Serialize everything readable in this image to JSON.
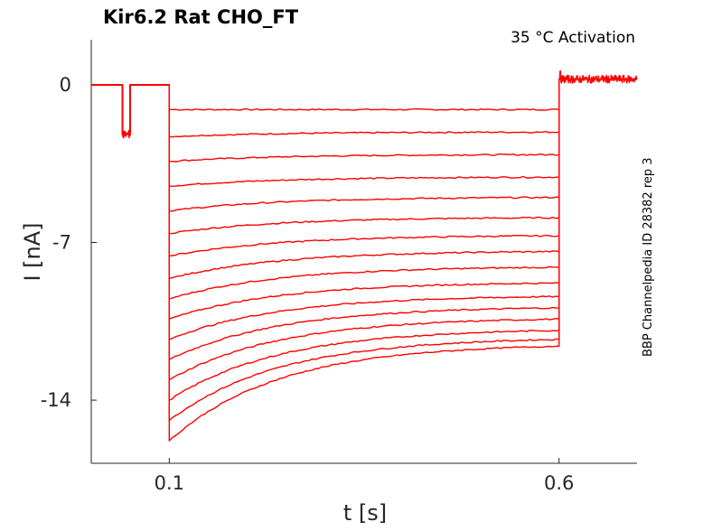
{
  "chart_data": {
    "type": "line",
    "title": "Kir6.2  Rat  CHO_FT",
    "annotation": "35 °C  Activation",
    "side_note": "BBP Channelpedia ID 28382 rep 3",
    "xlabel": "t [s]",
    "ylabel": "I [nA]",
    "xlim": [
      0.0,
      0.7
    ],
    "ylim": [
      -16.8,
      2.0
    ],
    "x_ticks": [
      0.1,
      0.6
    ],
    "x_tick_labels": [
      "0.1",
      "0.6"
    ],
    "y_ticks": [
      0,
      -7,
      -14
    ],
    "y_tick_labels": [
      "0",
      "-7",
      "-14"
    ],
    "grid": false,
    "legend": "none",
    "trace_color": "#ff0000",
    "protocol": {
      "baseline_current": 0,
      "prepulse": {
        "start": 0.04,
        "end": 0.05,
        "current": -2.2
      },
      "step_start": 0.1,
      "step_end": 0.6,
      "tail_current": 0.25,
      "tail_end": 0.7
    },
    "series": [
      {
        "start": -1.1,
        "end": -1.1
      },
      {
        "start": -2.3,
        "end": -2.1
      },
      {
        "start": -3.4,
        "end": -3.1
      },
      {
        "start": -4.5,
        "end": -4.1
      },
      {
        "start": -5.6,
        "end": -5.0
      },
      {
        "start": -6.6,
        "end": -5.9
      },
      {
        "start": -7.6,
        "end": -6.7
      },
      {
        "start": -8.6,
        "end": -7.4
      },
      {
        "start": -9.5,
        "end": -8.1
      },
      {
        "start": -10.4,
        "end": -8.8
      },
      {
        "start": -11.3,
        "end": -9.4
      },
      {
        "start": -12.2,
        "end": -9.9
      },
      {
        "start": -13.1,
        "end": -10.4
      },
      {
        "start": -14.0,
        "end": -10.9
      },
      {
        "start": -14.9,
        "end": -11.3
      },
      {
        "start": -15.8,
        "end": -11.6
      }
    ]
  }
}
